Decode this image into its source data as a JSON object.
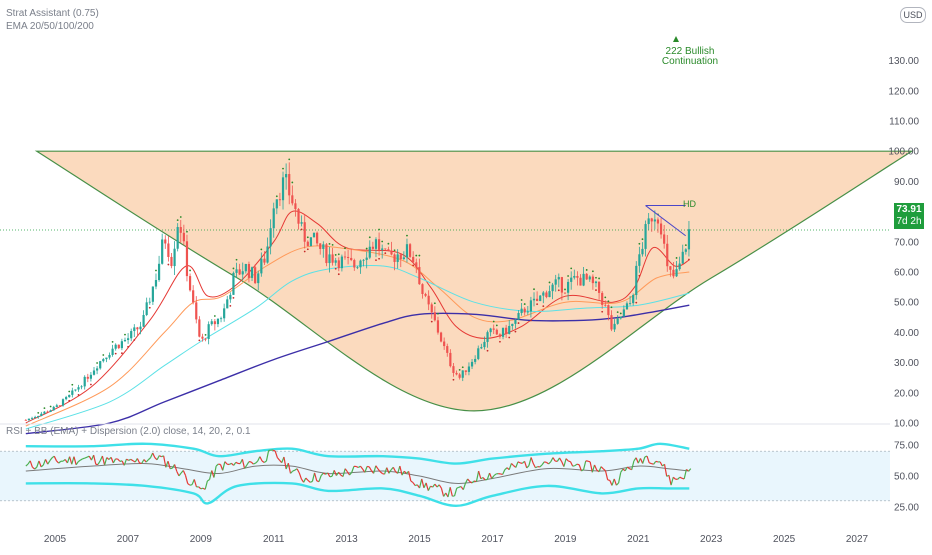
{
  "legend": {
    "indicator_1": "Strat Assistant (0.75)",
    "indicator_2": "EMA 20/50/100/200",
    "rsi": "RSI + BB (EMA) + Dispersion (2.0) close, 14, 20, 2, 0.1"
  },
  "currency": "USD",
  "current_price": {
    "value": "73.91",
    "countdown": "7d 2h"
  },
  "annotation": {
    "line1": "222 Bullish",
    "line2": "Continuation",
    "pattern_mark": "HD"
  },
  "colors": {
    "up": "#26a69a",
    "down": "#ef5350",
    "bowl": "#fbd9bb",
    "bowl_stroke": "#3e8a3e",
    "ema20": "#e53935",
    "ema50": "#ff9a5a",
    "ema100": "#5ce1e6",
    "ema200": "#3c2fa8",
    "rsi_bg": "#e9f6fd",
    "rsi_bands": "#3fe0e8",
    "rsi_basis": "#7a7a7a",
    "badge": "#1f9d3c",
    "trendline": "#4a46c8"
  },
  "chart_data": [
    {
      "type": "candlestick",
      "title": "",
      "x_ticks": [
        "2005",
        "2007",
        "2009",
        "2011",
        "2013",
        "2015",
        "2017",
        "2019",
        "2021",
        "2023",
        "2025",
        "2027"
      ],
      "x_range": [
        2004.0,
        2028.5
      ],
      "y_ticks": [
        "10.00",
        "20.00",
        "30.00",
        "40.00",
        "50.00",
        "60.00",
        "70.00",
        "80.00",
        "90.00",
        "100.00",
        "110.00",
        "120.00",
        "130.00"
      ],
      "ylim": [
        3.5,
        131
      ],
      "current_value": 73.91,
      "close_path": [
        [
          2004.2,
          11
        ],
        [
          2004.6,
          13
        ],
        [
          2005.0,
          15
        ],
        [
          2005.4,
          19
        ],
        [
          2005.8,
          24
        ],
        [
          2006.2,
          30
        ],
        [
          2006.6,
          35
        ],
        [
          2007.0,
          38
        ],
        [
          2007.4,
          43
        ],
        [
          2007.8,
          60
        ],
        [
          2008.0,
          72
        ],
        [
          2008.2,
          64
        ],
        [
          2008.4,
          79
        ],
        [
          2008.6,
          62
        ],
        [
          2008.8,
          48
        ],
        [
          2009.0,
          36
        ],
        [
          2009.2,
          41
        ],
        [
          2009.6,
          46
        ],
        [
          2009.9,
          58
        ],
        [
          2010.2,
          62
        ],
        [
          2010.5,
          58
        ],
        [
          2010.8,
          66
        ],
        [
          2011.0,
          84
        ],
        [
          2011.3,
          90
        ],
        [
          2011.5,
          84
        ],
        [
          2011.8,
          72
        ],
        [
          2012.1,
          70
        ],
        [
          2012.4,
          66
        ],
        [
          2012.8,
          64
        ],
        [
          2013.2,
          62
        ],
        [
          2013.6,
          68
        ],
        [
          2013.8,
          70
        ],
        [
          2014.1,
          64
        ],
        [
          2014.4,
          66
        ],
        [
          2014.7,
          67
        ],
        [
          2014.9,
          63
        ],
        [
          2015.1,
          52
        ],
        [
          2015.4,
          44
        ],
        [
          2015.7,
          34
        ],
        [
          2015.9,
          28
        ],
        [
          2016.1,
          25
        ],
        [
          2016.4,
          30
        ],
        [
          2016.7,
          36
        ],
        [
          2016.9,
          40
        ],
        [
          2017.2,
          39
        ],
        [
          2017.6,
          43
        ],
        [
          2017.9,
          48
        ],
        [
          2018.2,
          50
        ],
        [
          2018.5,
          54
        ],
        [
          2018.8,
          56
        ],
        [
          2019.0,
          55
        ],
        [
          2019.3,
          58
        ],
        [
          2019.6,
          57
        ],
        [
          2019.9,
          54
        ],
        [
          2020.1,
          48
        ],
        [
          2020.3,
          40
        ],
        [
          2020.5,
          45
        ],
        [
          2020.8,
          50
        ],
        [
          2021.0,
          64
        ],
        [
          2021.2,
          73
        ],
        [
          2021.4,
          80
        ],
        [
          2021.6,
          78
        ],
        [
          2021.8,
          60
        ],
        [
          2022.0,
          58
        ],
        [
          2022.2,
          64
        ],
        [
          2022.4,
          73.91
        ]
      ],
      "series": [
        {
          "name": "EMA 20",
          "values": [
            [
              2004.2,
              10
            ],
            [
              2006.0,
              22
            ],
            [
              2007.6,
              44
            ],
            [
              2008.6,
              62
            ],
            [
              2009.2,
              52
            ],
            [
              2010.0,
              56
            ],
            [
              2011.0,
              70
            ],
            [
              2011.5,
              80
            ],
            [
              2012.2,
              76
            ],
            [
              2013.0,
              68
            ],
            [
              2014.5,
              66
            ],
            [
              2015.3,
              55
            ],
            [
              2016.0,
              42
            ],
            [
              2016.8,
              38
            ],
            [
              2017.8,
              42
            ],
            [
              2019.0,
              52
            ],
            [
              2020.3,
              50
            ],
            [
              2020.9,
              55
            ],
            [
              2021.4,
              68
            ],
            [
              2022.0,
              62
            ],
            [
              2022.4,
              64
            ]
          ]
        },
        {
          "name": "EMA 50",
          "values": [
            [
              2004.2,
              9
            ],
            [
              2006.5,
              22
            ],
            [
              2008.0,
              40
            ],
            [
              2008.8,
              50
            ],
            [
              2009.6,
              52
            ],
            [
              2010.8,
              62
            ],
            [
              2011.8,
              68
            ],
            [
              2012.8,
              68
            ],
            [
              2014.5,
              64
            ],
            [
              2015.5,
              55
            ],
            [
              2016.5,
              45
            ],
            [
              2017.5,
              44
            ],
            [
              2019.0,
              50
            ],
            [
              2020.5,
              50
            ],
            [
              2021.5,
              58
            ],
            [
              2022.4,
              60
            ]
          ]
        },
        {
          "name": "EMA 100",
          "values": [
            [
              2004.2,
              8
            ],
            [
              2006.5,
              17
            ],
            [
              2008.0,
              29
            ],
            [
              2009.0,
              37
            ],
            [
              2010.5,
              48
            ],
            [
              2011.5,
              57
            ],
            [
              2012.5,
              61
            ],
            [
              2014.0,
              62
            ],
            [
              2015.0,
              58
            ],
            [
              2016.5,
              50
            ],
            [
              2018.0,
              47
            ],
            [
              2019.5,
              48
            ],
            [
              2021.0,
              49
            ],
            [
              2022.4,
              53
            ]
          ]
        },
        {
          "name": "EMA 200",
          "values": [
            [
              2004.2,
              6.5
            ],
            [
              2006.5,
              10
            ],
            [
              2008.0,
              17
            ],
            [
              2009.5,
              24
            ],
            [
              2011.0,
              31
            ],
            [
              2012.5,
              37
            ],
            [
              2014.0,
              43
            ],
            [
              2015.0,
              46
            ],
            [
              2016.5,
              46
            ],
            [
              2018.0,
              44
            ],
            [
              2019.5,
              44
            ],
            [
              2020.5,
              45
            ],
            [
              2021.5,
              47
            ],
            [
              2022.4,
              49
            ]
          ]
        }
      ],
      "pattern_curve": [
        [
          2004.5,
          100
        ],
        [
          2010.0,
          58
        ],
        [
          2016.5,
          14
        ],
        [
          2023.0,
          58
        ],
        [
          2028.5,
          100
        ]
      ],
      "resistance_line": [
        [
          2021.2,
          82
        ],
        [
          2022.3,
          82
        ]
      ],
      "trend_line": [
        [
          2021.2,
          82
        ],
        [
          2022.3,
          72
        ]
      ]
    },
    {
      "type": "line",
      "title": "",
      "y_ticks": [
        "25.00",
        "50.00",
        "75.00"
      ],
      "ylim": [
        18,
        82
      ],
      "zone": [
        30,
        70
      ],
      "series": [
        {
          "name": "RSI",
          "values": [
            [
              2004.2,
              58
            ],
            [
              2005.0,
              62
            ],
            [
              2006.0,
              64
            ],
            [
              2007.0,
              60
            ],
            [
              2007.8,
              66
            ],
            [
              2008.5,
              52
            ],
            [
              2009.0,
              38
            ],
            [
              2009.5,
              58
            ],
            [
              2010.3,
              60
            ],
            [
              2011.0,
              68
            ],
            [
              2011.8,
              48
            ],
            [
              2012.5,
              50
            ],
            [
              2013.3,
              55
            ],
            [
              2013.8,
              56
            ],
            [
              2014.5,
              54
            ],
            [
              2015.0,
              44
            ],
            [
              2015.6,
              38
            ],
            [
              2016.0,
              36
            ],
            [
              2016.6,
              50
            ],
            [
              2017.2,
              52
            ],
            [
              2017.8,
              60
            ],
            [
              2018.5,
              62
            ],
            [
              2019.0,
              60
            ],
            [
              2019.5,
              58
            ],
            [
              2020.0,
              56
            ],
            [
              2020.3,
              44
            ],
            [
              2020.7,
              56
            ],
            [
              2021.2,
              66
            ],
            [
              2021.6,
              62
            ],
            [
              2021.9,
              46
            ],
            [
              2022.2,
              50
            ],
            [
              2022.4,
              54
            ]
          ]
        },
        {
          "name": "Basis",
          "values": [
            [
              2004.2,
              54
            ],
            [
              2006.0,
              58
            ],
            [
              2007.5,
              60
            ],
            [
              2008.5,
              56
            ],
            [
              2009.5,
              52
            ],
            [
              2010.5,
              58
            ],
            [
              2011.5,
              58
            ],
            [
              2012.5,
              52
            ],
            [
              2014.0,
              54
            ],
            [
              2015.0,
              50
            ],
            [
              2016.0,
              44
            ],
            [
              2017.0,
              48
            ],
            [
              2018.5,
              56
            ],
            [
              2020.0,
              54
            ],
            [
              2021.0,
              58
            ],
            [
              2021.8,
              56
            ],
            [
              2022.4,
              54
            ]
          ]
        },
        {
          "name": "Upper",
          "values": [
            [
              2004.2,
              74
            ],
            [
              2006.0,
              74
            ],
            [
              2007.5,
              76
            ],
            [
              2008.8,
              72
            ],
            [
              2009.5,
              66
            ],
            [
              2010.5,
              70
            ],
            [
              2011.5,
              72
            ],
            [
              2012.5,
              66
            ],
            [
              2014.0,
              66
            ],
            [
              2015.0,
              64
            ],
            [
              2016.0,
              60
            ],
            [
              2017.0,
              64
            ],
            [
              2018.5,
              68
            ],
            [
              2020.0,
              70
            ],
            [
              2021.0,
              72
            ],
            [
              2021.6,
              76
            ],
            [
              2022.4,
              72
            ]
          ]
        },
        {
          "name": "Lower",
          "values": [
            [
              2004.2,
              44
            ],
            [
              2006.0,
              44
            ],
            [
              2007.5,
              42
            ],
            [
              2008.8,
              36
            ],
            [
              2009.2,
              28
            ],
            [
              2010.0,
              42
            ],
            [
              2011.5,
              44
            ],
            [
              2012.5,
              38
            ],
            [
              2014.0,
              40
            ],
            [
              2015.0,
              34
            ],
            [
              2016.0,
              26
            ],
            [
              2017.0,
              34
            ],
            [
              2018.5,
              42
            ],
            [
              2020.0,
              36
            ],
            [
              2021.0,
              40
            ],
            [
              2021.8,
              40
            ],
            [
              2022.4,
              40
            ]
          ]
        }
      ]
    }
  ]
}
